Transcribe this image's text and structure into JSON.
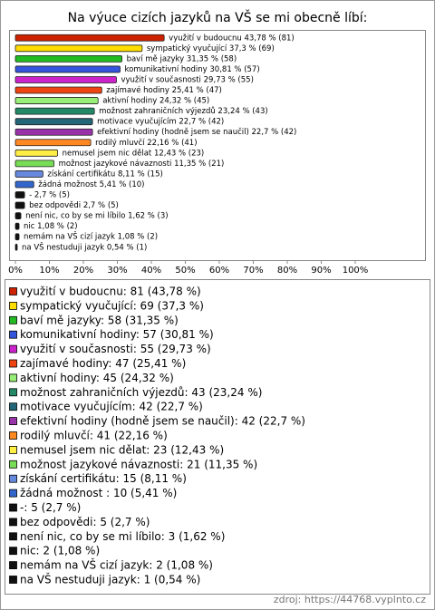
{
  "chart_data": {
    "type": "barh",
    "title": "Na výuce cizích jazyků na VŠ se mi obecně líbí:",
    "values": [
      43.78,
      37.3,
      31.35,
      30.81,
      29.73,
      25.41,
      24.32,
      23.24,
      22.7,
      22.7,
      22.16,
      12.43,
      11.35,
      8.11,
      5.41,
      2.7,
      2.7,
      1.62,
      1.08,
      1.08,
      0.54
    ],
    "value_labels": [
      "využití v budoucnu 43,78 % (81)",
      "sympatický vyučující 37,3 % (69)",
      "baví mě jazyky 31,35 % (58)",
      "komunikativní hodiny 30,81 % (57)",
      "využití v současnosti 29,73 % (55)",
      "zajímavé hodiny 25,41 % (47)",
      "aktivní hodiny 24,32 % (45)",
      "možnost zahraničních výjezdů 23,24 % (43)",
      "motivace vyučujícím 22,7 % (42)",
      "efektivní hodiny (hodně jsem se naučil) 22,7 % (42)",
      "rodilý mluvčí 22,16 % (41)",
      "nemusel jsem nic dělat 12,43 % (23)",
      "možnost jazykové návaznosti 11,35 % (21)",
      "získání certifikátu 8,11 % (15)",
      "žádná možnost  5,41 % (10)",
      "- 2,7 % (5)",
      "bez odpovědi 2,7 % (5)",
      "není nic, co by se mi líbilo 1,62 % (3)",
      "nic 1,08 % (2)",
      "nemám na VŠ cizí jazyk 1,08 % (2)",
      "na VŠ nestuduji jazyk 0,54 % (1)"
    ],
    "legend": [
      "využití v budoucnu: 81 (43,78 %)",
      "sympatický vyučující: 69 (37,3 %)",
      "baví mě jazyky: 58 (31,35 %)",
      "komunikativní hodiny: 57 (30,81 %)",
      "využití v současnosti: 55 (29,73 %)",
      "zajímavé hodiny: 47 (25,41 %)",
      "aktivní hodiny: 45 (24,32 %)",
      "možnost zahraničních výjezdů: 43 (23,24 %)",
      "motivace vyučujícím: 42 (22,7 %)",
      "efektivní hodiny (hodně jsem se naučil): 42 (22,7 %)",
      "rodilý mluvčí: 41 (22,16 %)",
      "nemusel jsem nic dělat: 23 (12,43 %)",
      "možnost jazykové návaznosti: 21 (11,35 %)",
      "získání certifikátu: 15 (8,11 %)",
      "žádná možnost : 10 (5,41 %)",
      "-: 5 (2,7 %)",
      "bez odpovědi: 5 (2,7 %)",
      "není nic, co by se mi líbilo: 3 (1,62 %)",
      "nic: 2 (1,08 %)",
      "nemám na VŠ cizí jazyk: 2 (1,08 %)",
      "na VŠ nestuduji jazyk: 1 (0,54 %)"
    ],
    "colors": [
      "#cc2200",
      "#ffdd00",
      "#22bb22",
      "#3355dd",
      "#cc22cc",
      "#ee4411",
      "#99ee77",
      "#228866",
      "#226677",
      "#9933aa",
      "#ff8822",
      "#ffee44",
      "#77dd55",
      "#6688dd",
      "#3366cc",
      "#111111",
      "#111111",
      "#111111",
      "#111111",
      "#111111",
      "#111111"
    ],
    "xlim": [
      0,
      120
    ],
    "xticks": [
      {
        "value": 0,
        "label": "0%"
      },
      {
        "value": 10,
        "label": "10%"
      },
      {
        "value": 20,
        "label": "20%"
      },
      {
        "value": 30,
        "label": "30%"
      },
      {
        "value": 40,
        "label": "40%"
      },
      {
        "value": 50,
        "label": "50%"
      },
      {
        "value": 60,
        "label": "60%"
      },
      {
        "value": 70,
        "label": "70%"
      },
      {
        "value": 80,
        "label": "80%"
      },
      {
        "value": 90,
        "label": "90%"
      },
      {
        "value": 100,
        "label": "100%"
      }
    ],
    "source": "zdroj: https://44768.vyplnto.cz"
  }
}
